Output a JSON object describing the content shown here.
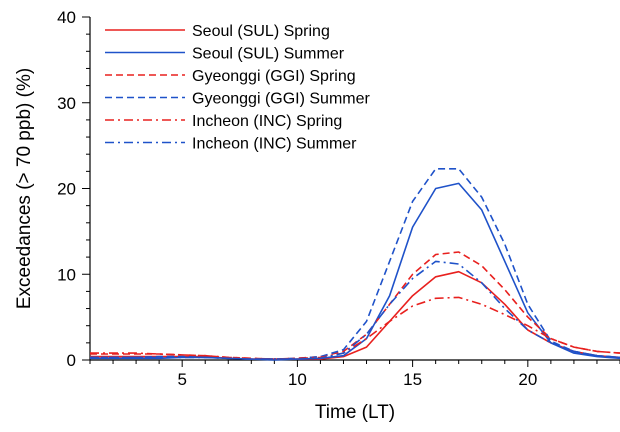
{
  "chart_data": {
    "type": "line",
    "xlabel": "Time (LT)",
    "ylabel": "Exceedances (> 70 ppb) (%)",
    "xlim": [
      1,
      24
    ],
    "ylim": [
      0,
      40
    ],
    "x_ticks": [
      5,
      10,
      15,
      20
    ],
    "y_ticks": [
      0,
      10,
      20,
      30,
      40
    ],
    "grid": false,
    "legend_position": "top-left",
    "x": [
      1,
      2,
      3,
      4,
      5,
      6,
      7,
      8,
      9,
      10,
      11,
      12,
      13,
      14,
      15,
      16,
      17,
      18,
      19,
      20,
      21,
      22,
      23,
      24
    ],
    "series": [
      {
        "name": "Seoul (SUL) Spring",
        "color": "#e8201e",
        "dash": "solid",
        "values": [
          0.4,
          0.4,
          0.4,
          0.4,
          0.4,
          0.4,
          0.2,
          0.1,
          0.1,
          0.1,
          0.1,
          0.4,
          1.5,
          4.5,
          7.5,
          9.7,
          10.3,
          9.0,
          6.5,
          3.5,
          2.0,
          1.0,
          0.5,
          0.3
        ]
      },
      {
        "name": "Seoul (SUL) Summer",
        "color": "#1f52c9",
        "dash": "solid",
        "values": [
          0.2,
          0.2,
          0.2,
          0.2,
          0.3,
          0.3,
          0.2,
          0.1,
          0.0,
          0.1,
          0.2,
          0.5,
          2.5,
          7.5,
          15.5,
          20.0,
          20.6,
          17.5,
          11.5,
          5.5,
          2.0,
          0.8,
          0.4,
          0.2
        ]
      },
      {
        "name": "Gyeonggi (GGI) Spring",
        "color": "#e8201e",
        "dash": "dashed",
        "values": [
          0.7,
          0.7,
          0.7,
          0.7,
          0.6,
          0.5,
          0.3,
          0.2,
          0.1,
          0.2,
          0.4,
          1.0,
          3.0,
          6.5,
          10.0,
          12.3,
          12.6,
          11.0,
          8.2,
          5.0,
          2.5,
          1.5,
          1.0,
          0.8
        ]
      },
      {
        "name": "Gyeonggi (GGI) Summer",
        "color": "#1f52c9",
        "dash": "dashed",
        "values": [
          0.3,
          0.3,
          0.3,
          0.4,
          0.4,
          0.3,
          0.2,
          0.1,
          0.1,
          0.2,
          0.4,
          1.2,
          4.5,
          11.5,
          18.5,
          22.3,
          22.3,
          19.0,
          13.5,
          6.5,
          2.2,
          1.0,
          0.5,
          0.3
        ]
      },
      {
        "name": "Incheon (INC) Spring",
        "color": "#e8201e",
        "dash": "dashdot",
        "values": [
          0.8,
          0.8,
          0.8,
          0.7,
          0.6,
          0.5,
          0.3,
          0.2,
          0.1,
          0.2,
          0.3,
          0.8,
          2.5,
          4.5,
          6.3,
          7.2,
          7.3,
          6.5,
          5.3,
          4.0,
          2.5,
          1.5,
          1.0,
          0.8
        ]
      },
      {
        "name": "Incheon (INC) Summer",
        "color": "#1f52c9",
        "dash": "dashdot",
        "values": [
          0.3,
          0.3,
          0.3,
          0.3,
          0.3,
          0.3,
          0.2,
          0.1,
          0.1,
          0.1,
          0.2,
          0.8,
          3.0,
          6.5,
          9.5,
          11.5,
          11.2,
          9.0,
          6.0,
          3.5,
          2.0,
          1.0,
          0.5,
          0.3
        ]
      }
    ]
  }
}
